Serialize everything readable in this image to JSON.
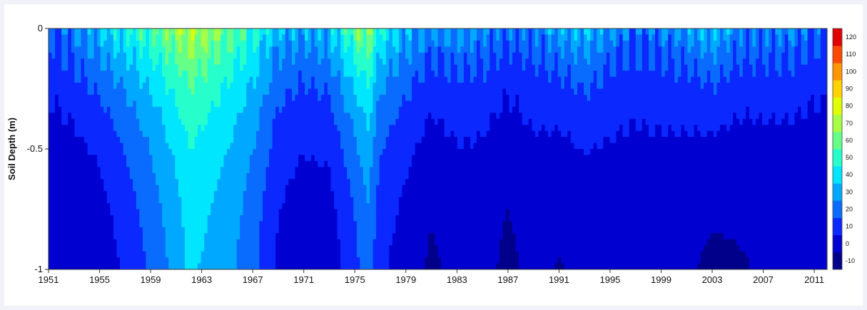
{
  "chart_data": {
    "type": "heatmap",
    "title": "",
    "xlabel": "",
    "ylabel": "Soil Depth (m)",
    "xlim": [
      1951,
      2012
    ],
    "ylim": [
      -1,
      0
    ],
    "x_ticks": [
      "1951",
      "1955",
      "1959",
      "1963",
      "1967",
      "1971",
      "1975",
      "1979",
      "1983",
      "1987",
      "1991",
      "1995",
      "1999",
      "2003",
      "2007",
      "2011"
    ],
    "y_ticks": [
      "0",
      "-0.5",
      "-1"
    ],
    "y_tick_values": [
      0,
      -0.5,
      -1
    ],
    "colorbar": {
      "min": -10,
      "max": 120,
      "step": 10,
      "tick_labels": [
        "120",
        "110",
        "100",
        "90",
        "80",
        "70",
        "60",
        "50",
        "40",
        "30",
        "20",
        "10",
        "0",
        "-10"
      ],
      "colors": [
        "#00008b",
        "#0000d0",
        "#0a28ff",
        "#0a6cff",
        "#00a8ff",
        "#00e6ff",
        "#26ffcc",
        "#66ff88",
        "#a6ff44",
        "#e0ff00",
        "#ffd200",
        "#ff9600",
        "#ff4800",
        "#e00000"
      ]
    },
    "colormap": "jet",
    "grid": false,
    "depth_profiles": [
      {
        "year": 1951,
        "surface": 20,
        "deep": 0
      },
      {
        "year": 1953,
        "surface": 30,
        "deep": -2
      },
      {
        "year": 1955,
        "surface": 40,
        "deep": 0
      },
      {
        "year": 1957,
        "surface": 50,
        "deep": 8
      },
      {
        "year": 1959,
        "surface": 60,
        "deep": 18
      },
      {
        "year": 1961,
        "surface": 72,
        "deep": 30
      },
      {
        "year": 1962,
        "surface": 78,
        "deep": 38
      },
      {
        "year": 1963,
        "surface": 74,
        "deep": 36
      },
      {
        "year": 1965,
        "surface": 65,
        "deep": 30
      },
      {
        "year": 1967,
        "surface": 55,
        "deep": 20
      },
      {
        "year": 1969,
        "surface": 38,
        "deep": 5
      },
      {
        "year": 1971,
        "surface": 35,
        "deep": 0
      },
      {
        "year": 1973,
        "surface": 40,
        "deep": 0
      },
      {
        "year": 1975,
        "surface": 65,
        "deep": 12
      },
      {
        "year": 1976,
        "surface": 72,
        "deep": 22
      },
      {
        "year": 1977,
        "surface": 50,
        "deep": 8
      },
      {
        "year": 1979,
        "surface": 38,
        "deep": 2
      },
      {
        "year": 1981,
        "surface": 30,
        "deep": -5
      },
      {
        "year": 1983,
        "surface": 32,
        "deep": 0
      },
      {
        "year": 1985,
        "surface": 30,
        "deep": 0
      },
      {
        "year": 1987,
        "surface": 25,
        "deep": -5
      },
      {
        "year": 1989,
        "surface": 28,
        "deep": 0
      },
      {
        "year": 1991,
        "surface": 34,
        "deep": -4
      },
      {
        "year": 1993,
        "surface": 40,
        "deep": -2
      },
      {
        "year": 1995,
        "surface": 30,
        "deep": 0
      },
      {
        "year": 1997,
        "surface": 26,
        "deep": 0
      },
      {
        "year": 1999,
        "surface": 28,
        "deep": 0
      },
      {
        "year": 2001,
        "surface": 32,
        "deep": -2
      },
      {
        "year": 2003,
        "surface": 40,
        "deep": -6
      },
      {
        "year": 2005,
        "surface": 30,
        "deep": -4
      },
      {
        "year": 2007,
        "surface": 28,
        "deep": -2
      },
      {
        "year": 2009,
        "surface": 30,
        "deep": -3
      },
      {
        "year": 2011,
        "surface": 24,
        "deep": -2
      }
    ]
  }
}
